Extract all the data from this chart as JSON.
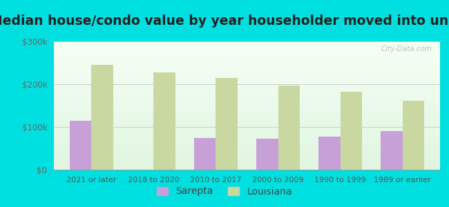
{
  "title": "Median house/condo value by year householder moved into unit",
  "categories": [
    "2021 or later",
    "2018 to 2020",
    "2010 to 2017",
    "2000 to 2009",
    "1990 to 1999",
    "1989 or earlier"
  ],
  "sarepta_values": [
    115000,
    null,
    75000,
    72000,
    78000,
    90000
  ],
  "louisiana_values": [
    245000,
    228000,
    215000,
    197000,
    183000,
    162000
  ],
  "sarepta_color": "#c8a0d8",
  "louisiana_color": "#c8d8a0",
  "background_outer": "#00e0e0",
  "ylim": [
    0,
    300000
  ],
  "yticks": [
    0,
    100000,
    200000,
    300000
  ],
  "ytick_labels": [
    "$0",
    "$100k",
    "$200k",
    "$300k"
  ],
  "watermark": "City-Data.com",
  "legend_sarepta": "Sarepta",
  "legend_louisiana": "Louisiana",
  "bar_width": 0.35,
  "title_fontsize": 13.5
}
